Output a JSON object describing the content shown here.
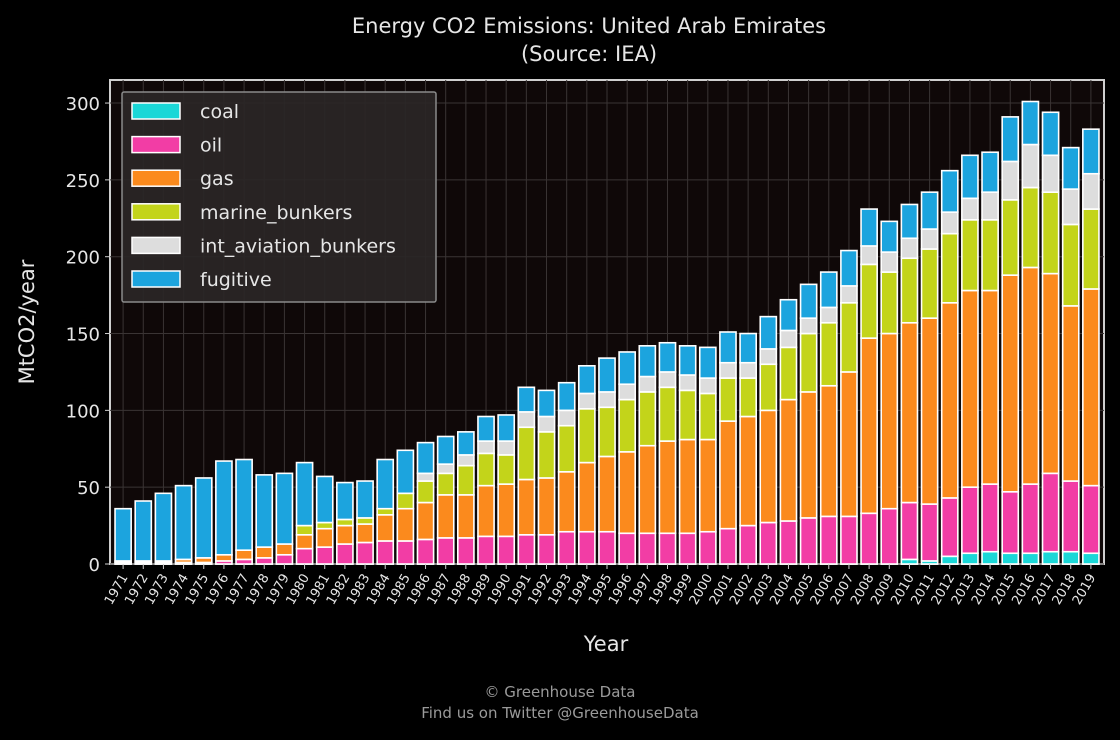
{
  "chart_data": {
    "type": "bar",
    "stacked": true,
    "title": "Energy CO2 Emissions: United Arab Emirates",
    "subtitle": "(Source: IEA)",
    "xlabel": "Year",
    "ylabel": "MtCO2/year",
    "ylim": [
      0,
      315
    ],
    "yticks": [
      0,
      50,
      100,
      150,
      200,
      250,
      300
    ],
    "grid": true,
    "legend_position": "top-left",
    "categories": [
      "1971",
      "1972",
      "1973",
      "1974",
      "1975",
      "1976",
      "1977",
      "1978",
      "1979",
      "1980",
      "1981",
      "1982",
      "1983",
      "1984",
      "1985",
      "1986",
      "1987",
      "1988",
      "1989",
      "1990",
      "1991",
      "1992",
      "1993",
      "1994",
      "1995",
      "1996",
      "1997",
      "1998",
      "1999",
      "2000",
      "2001",
      "2002",
      "2003",
      "2004",
      "2005",
      "2006",
      "2007",
      "2008",
      "2009",
      "2010",
      "2011",
      "2012",
      "2013",
      "2014",
      "2015",
      "2016",
      "2017",
      "2018",
      "2019"
    ],
    "series": [
      {
        "name": "coal",
        "color": "#1ad7d7",
        "values": [
          0,
          0,
          0,
          0,
          0,
          0,
          0,
          0,
          0,
          0,
          0,
          0,
          0,
          0,
          0,
          0,
          0,
          0,
          0,
          0,
          0,
          0,
          0,
          0,
          0,
          0,
          0,
          0,
          0,
          0,
          0,
          0,
          0,
          0,
          0,
          0,
          0,
          0,
          0,
          3,
          2,
          5,
          7,
          8,
          7,
          7,
          8,
          8,
          7
        ]
      },
      {
        "name": "oil",
        "color": "#f23da5",
        "values": [
          1,
          1,
          1,
          1,
          1,
          2,
          3,
          4,
          6,
          10,
          11,
          13,
          14,
          15,
          15,
          16,
          17,
          17,
          18,
          18,
          19,
          19,
          21,
          21,
          21,
          20,
          20,
          20,
          20,
          21,
          23,
          25,
          27,
          28,
          30,
          31,
          31,
          33,
          36,
          37,
          37,
          38,
          43,
          44,
          40,
          45,
          51,
          46,
          44
        ]
      },
      {
        "name": "gas",
        "color": "#fb8a1d",
        "values": [
          1,
          1,
          1,
          2,
          3,
          4,
          6,
          7,
          7,
          9,
          12,
          12,
          12,
          17,
          21,
          24,
          28,
          28,
          33,
          34,
          36,
          37,
          39,
          45,
          49,
          53,
          57,
          60,
          61,
          60,
          70,
          71,
          73,
          79,
          82,
          85,
          94,
          114,
          114,
          117,
          121,
          127,
          128,
          126,
          141,
          141,
          130,
          114,
          128
        ]
      },
      {
        "name": "marine_bunkers",
        "color": "#c3d41a",
        "values": [
          0,
          0,
          0,
          0,
          0,
          0,
          0,
          0,
          0,
          6,
          4,
          4,
          4,
          4,
          10,
          14,
          14,
          19,
          21,
          19,
          34,
          30,
          30,
          35,
          32,
          34,
          35,
          35,
          32,
          30,
          28,
          25,
          30,
          34,
          38,
          41,
          45,
          48,
          40,
          42,
          45,
          45,
          46,
          46,
          49,
          52,
          53,
          53,
          52
        ]
      },
      {
        "name": "int_aviation_bunkers",
        "color": "#dddddd",
        "values": [
          0,
          0,
          0,
          0,
          0,
          0,
          0,
          0,
          0,
          0,
          0,
          0,
          0,
          0,
          0,
          5,
          6,
          7,
          8,
          9,
          10,
          10,
          10,
          10,
          10,
          10,
          10,
          10,
          10,
          10,
          10,
          10,
          10,
          11,
          10,
          10,
          11,
          12,
          13,
          13,
          13,
          14,
          14,
          18,
          25,
          28,
          24,
          23,
          23
        ]
      },
      {
        "name": "fugitive",
        "color": "#1ca4de",
        "values": [
          34,
          39,
          44,
          48,
          52,
          61,
          59,
          47,
          46,
          41,
          30,
          24,
          24,
          32,
          28,
          20,
          18,
          15,
          16,
          17,
          16,
          17,
          18,
          18,
          22,
          21,
          20,
          19,
          19,
          20,
          20,
          19,
          21,
          20,
          22,
          23,
          23,
          24,
          20,
          22,
          24,
          27,
          28,
          26,
          29,
          28,
          28,
          27,
          29
        ]
      }
    ]
  },
  "footer": {
    "line1": "© Greenhouse Data",
    "line2": "Find us on Twitter @GreenhouseData"
  }
}
